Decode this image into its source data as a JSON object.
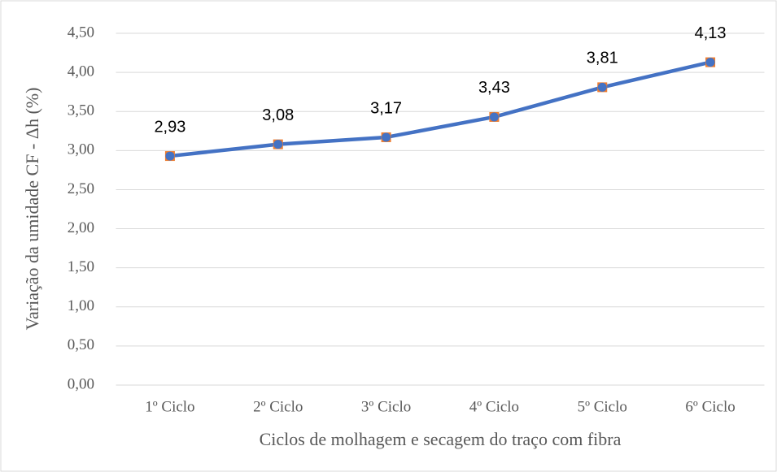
{
  "chart_data": {
    "type": "line",
    "x_label": "Ciclos de molhagem e secagem do traço com fibra",
    "y_label": "Variação da umidade CF - Δh (%)",
    "categories": [
      "1º Ciclo",
      "2º Ciclo",
      "3º Ciclo",
      "4º Ciclo",
      "5º Ciclo",
      "6º Ciclo"
    ],
    "values": [
      2.93,
      3.08,
      3.17,
      3.43,
      3.81,
      4.13
    ],
    "value_labels": [
      "2,93",
      "3,08",
      "3,17",
      "3,43",
      "3,81",
      "4,13"
    ],
    "color": "#4472c4",
    "marker_color": "#ed7d31",
    "ylim": [
      0,
      4.5
    ],
    "yticks": [
      {
        "value": 0,
        "label": "0,00"
      },
      {
        "value": 0.5,
        "label": "0,50"
      },
      {
        "value": 1,
        "label": "1,00"
      },
      {
        "value": 1.5,
        "label": "1,50"
      },
      {
        "value": 2,
        "label": "2,00"
      },
      {
        "value": 2.5,
        "label": "2,50"
      },
      {
        "value": 3,
        "label": "3,00"
      },
      {
        "value": 3.5,
        "label": "3,50"
      },
      {
        "value": 4,
        "label": "4,00"
      },
      {
        "value": 4.5,
        "label": "4,50"
      }
    ],
    "grid": true
  }
}
